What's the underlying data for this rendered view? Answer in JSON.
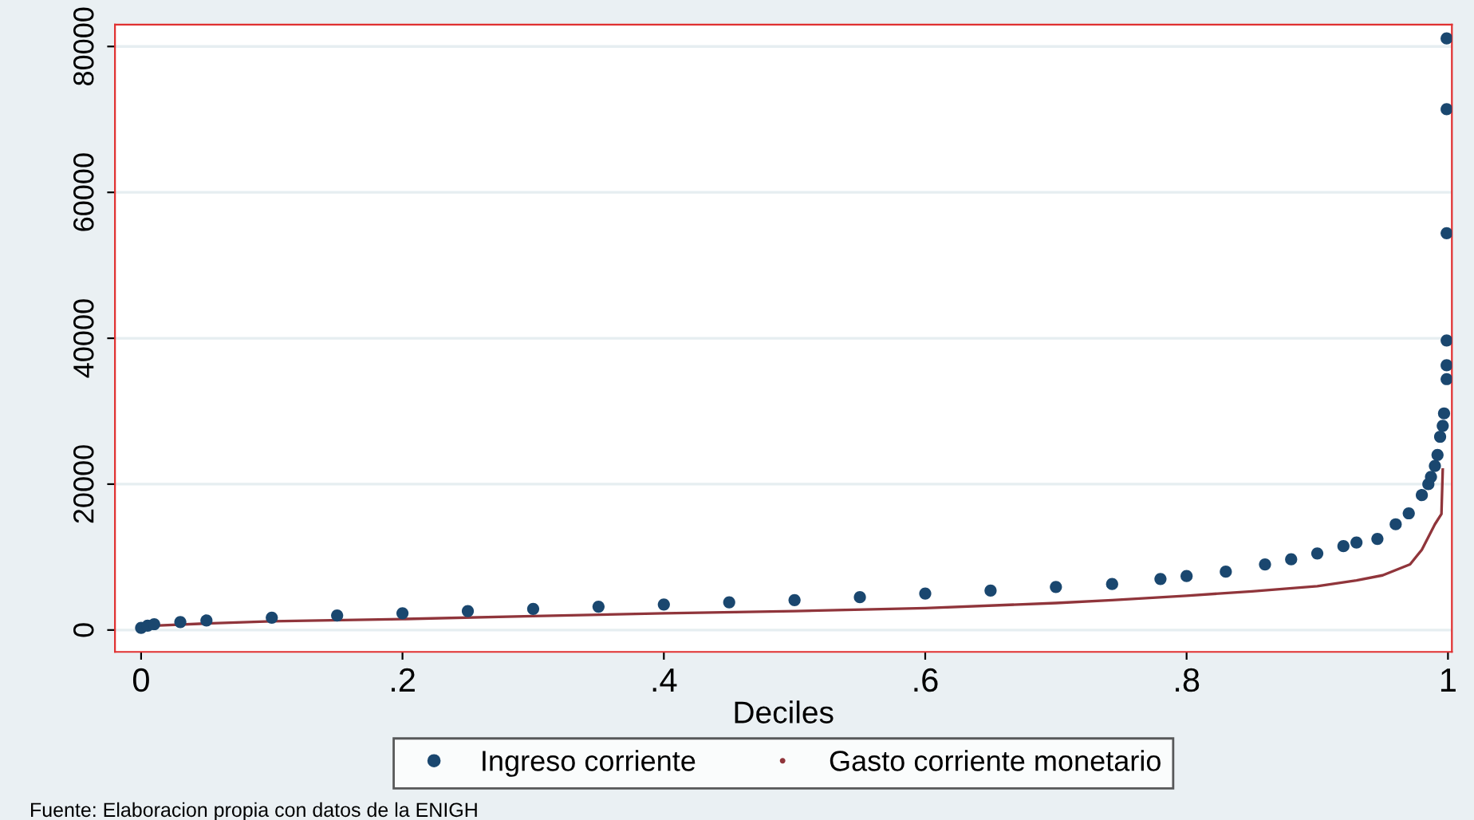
{
  "chart_data": {
    "type": "scatter",
    "xlabel": "Deciles",
    "xlim": [
      -0.02,
      1.003
    ],
    "ylim": [
      -3000,
      83000
    ],
    "xticks": [
      {
        "value": 0,
        "label": "0"
      },
      {
        "value": 0.2,
        "label": ".2"
      },
      {
        "value": 0.4,
        "label": ".4"
      },
      {
        "value": 0.6,
        "label": ".6"
      },
      {
        "value": 0.8,
        "label": ".8"
      },
      {
        "value": 1,
        "label": "1"
      }
    ],
    "yticks": [
      0,
      20000,
      40000,
      60000,
      80000
    ],
    "grid": "y",
    "legend": "bottom",
    "series": [
      {
        "name": "Ingreso corriente",
        "marker": "circle",
        "color": "#1a476f",
        "x": [
          0,
          0.005,
          0.01,
          0.03,
          0.05,
          0.1,
          0.15,
          0.2,
          0.25,
          0.3,
          0.35,
          0.4,
          0.45,
          0.5,
          0.55,
          0.6,
          0.65,
          0.7,
          0.743,
          0.78,
          0.8,
          0.83,
          0.86,
          0.88,
          0.9,
          0.92,
          0.93,
          0.946,
          0.96,
          0.97,
          0.98,
          0.985,
          0.987,
          0.99,
          0.992,
          0.994,
          0.996,
          0.997,
          0.999,
          0.999,
          0.999,
          0.999,
          0.999,
          0.999
        ],
        "values": [
          300,
          600,
          800,
          1100,
          1300,
          1700,
          2000,
          2300,
          2600,
          2900,
          3200,
          3500,
          3800,
          4100,
          4500,
          5000,
          5400,
          5900,
          6300,
          7000,
          7400,
          8000,
          9000,
          9700,
          10500,
          11500,
          12000,
          12500,
          14500,
          16000,
          18500,
          20000,
          21000,
          22500,
          24000,
          26500,
          28000,
          29700,
          34400,
          36300,
          39700,
          54400,
          71400,
          81100
        ]
      },
      {
        "name": "Gasto corriente monetario",
        "type": "line",
        "marker": "none",
        "color": "#90353b",
        "x": [
          0,
          0.01,
          0.05,
          0.1,
          0.2,
          0.3,
          0.4,
          0.5,
          0.6,
          0.7,
          0.743,
          0.8,
          0.85,
          0.9,
          0.93,
          0.95,
          0.971,
          0.98,
          0.99,
          0.995,
          0.996
        ],
        "values": [
          200,
          600,
          900,
          1200,
          1500,
          1900,
          2300,
          2600,
          3000,
          3700,
          4100,
          4700,
          5300,
          6000,
          6800,
          7500,
          9000,
          11000,
          14500,
          15900,
          22000
        ]
      }
    ],
    "annotations": [
      "Fuente: Elaboracion propia con datos de la ENIGH"
    ]
  }
}
